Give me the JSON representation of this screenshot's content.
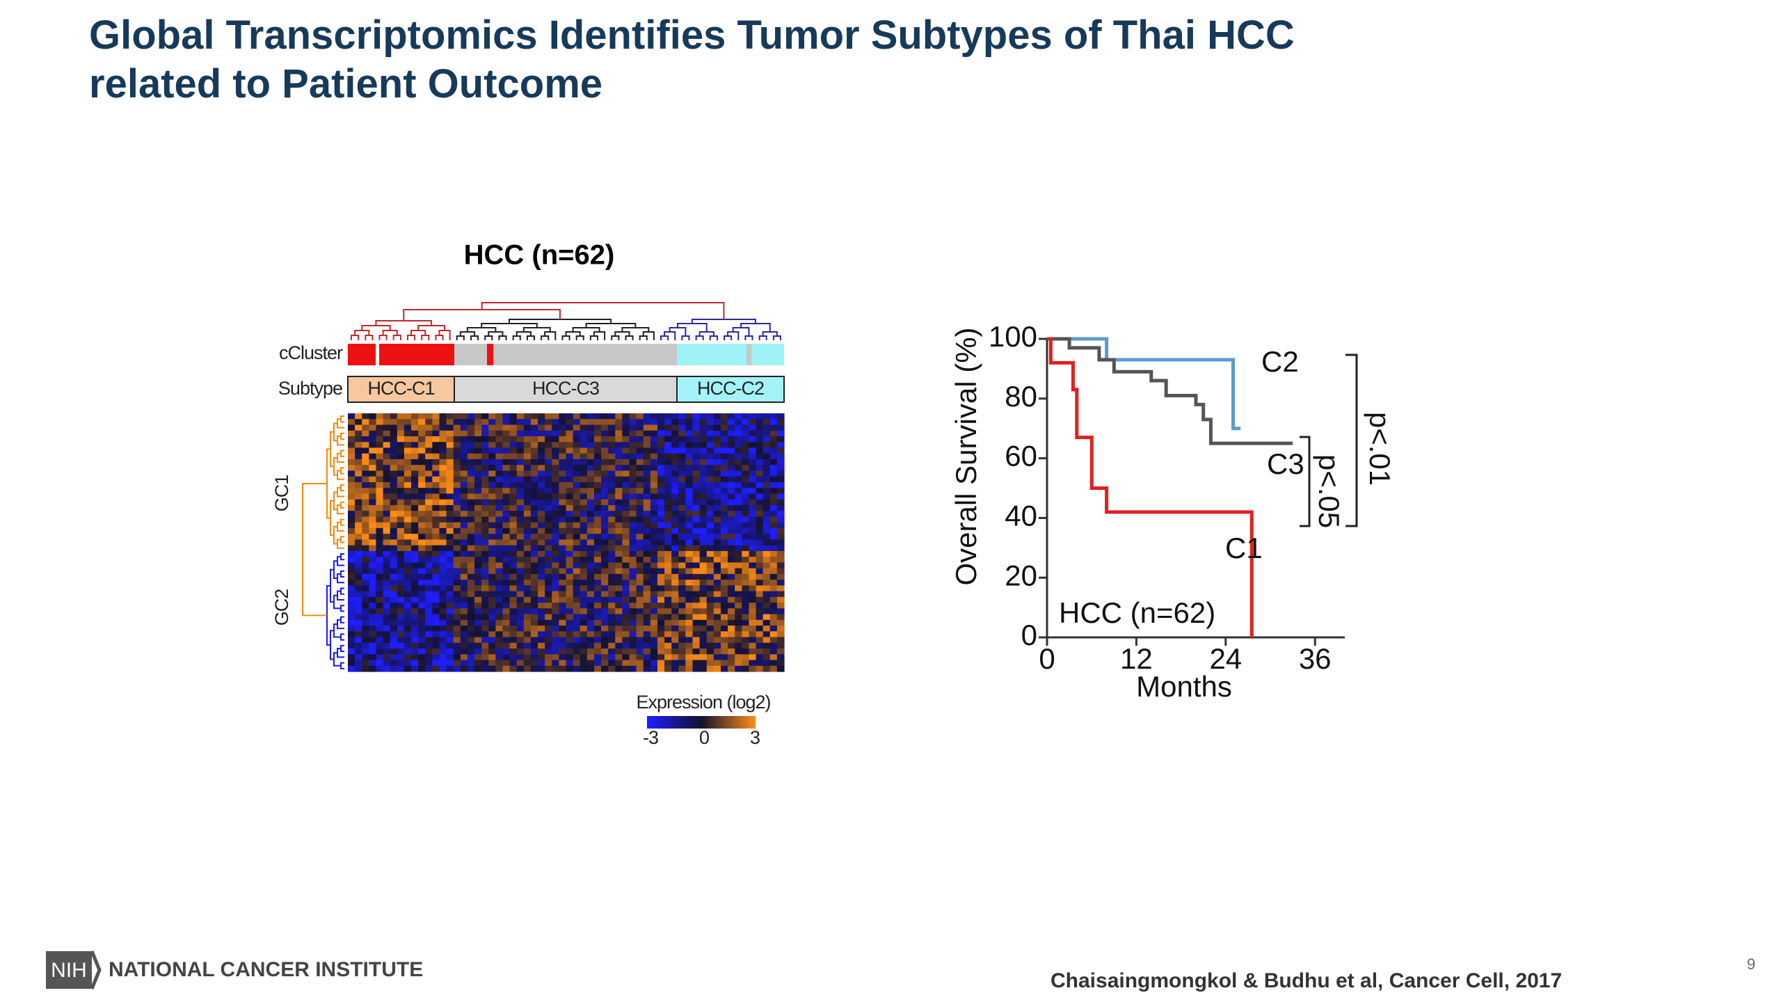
{
  "header": {
    "title": [
      "Global Transcriptomics Identifies Tumor Subtypes of Thai HCC",
      "related to Patient Outcome"
    ]
  },
  "heatmap": {
    "title": "HCC (n=62)",
    "row_labels": [
      "cCluster",
      "Subtype"
    ],
    "subtypes": [
      "HCC-C1",
      "HCC-C3",
      "HCC-C2"
    ],
    "gene_clusters": [
      "GC1",
      "GC2"
    ],
    "legend_title": "Expression (log2)",
    "legend_ticks": [
      "-3",
      "0",
      "3"
    ]
  },
  "chart_data": {
    "type": "line",
    "title": "HCC (n=62)",
    "x_label": "Months",
    "y_label": "Overall Survival (%)",
    "xlim": [
      0,
      40
    ],
    "ylim": [
      0,
      100
    ],
    "xticks": [
      0,
      12,
      24,
      36
    ],
    "yticks": [
      0,
      20,
      40,
      60,
      80,
      100
    ],
    "series": [
      {
        "name": "C2",
        "color": "#5b9bd5",
        "x": [
          0,
          8,
          8,
          25,
          25,
          26
        ],
        "values": [
          100,
          100,
          93,
          93,
          70,
          70
        ]
      },
      {
        "name": "C3",
        "color": "#555555",
        "x": [
          0,
          3,
          3,
          7,
          7,
          9,
          9,
          14,
          14,
          16,
          16,
          20,
          20,
          21,
          21,
          22,
          22,
          33
        ],
        "values": [
          100,
          100,
          97,
          97,
          93,
          93,
          89,
          89,
          86,
          86,
          81,
          81,
          78,
          78,
          73,
          73,
          65,
          65
        ]
      },
      {
        "name": "C1",
        "color": "#e02020",
        "x": [
          0,
          0.5,
          0.5,
          3.5,
          3.5,
          4,
          4,
          6,
          6,
          8,
          8,
          27.5,
          27.5
        ],
        "values": [
          100,
          100,
          92,
          92,
          83,
          83,
          67,
          67,
          50,
          50,
          42,
          42,
          0
        ]
      }
    ],
    "annotations": [
      "p<.05",
      "p<.01"
    ]
  },
  "footer": {
    "logo": "NIH",
    "org": "NATIONAL CANCER INSTITUTE",
    "citation": "Chaisaingmongkol & Budhu et al, Cancer Cell, 2017",
    "page": "9"
  }
}
